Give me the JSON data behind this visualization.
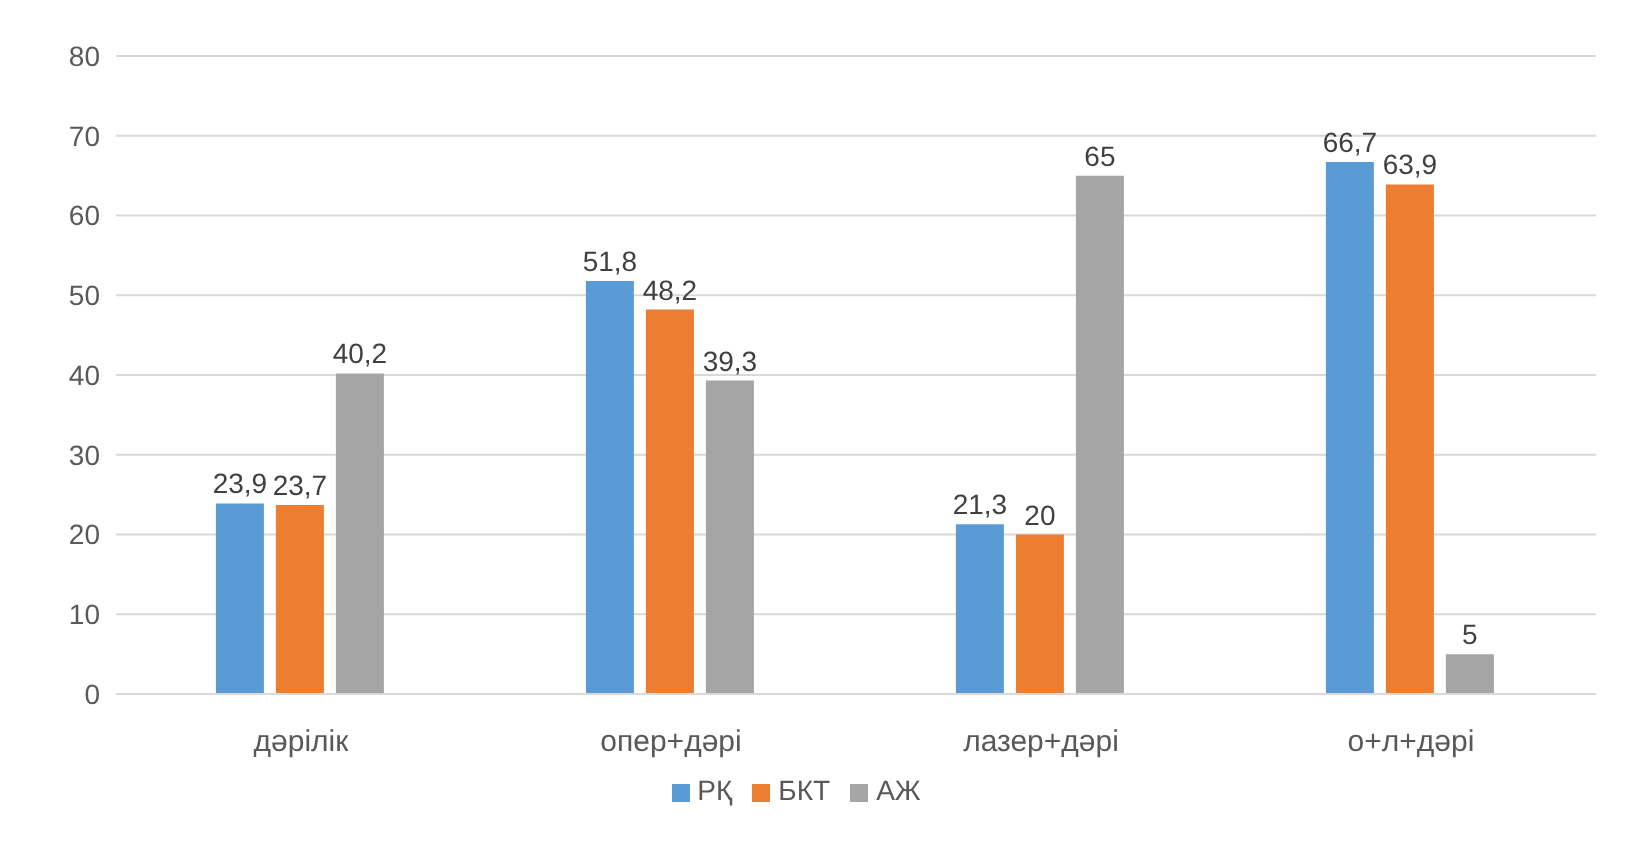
{
  "chart_data": {
    "type": "bar",
    "categories": [
      "дәрілік",
      "опер+дәрі",
      "лазер+дәрі",
      "о+л+дәрі"
    ],
    "series": [
      {
        "name": "РҚ",
        "color": "#5b9bd5",
        "values": [
          23.9,
          51.8,
          21.3,
          66.7
        ],
        "value_labels": [
          "23,9",
          "51,8",
          "21,3",
          "66,7"
        ]
      },
      {
        "name": "БКТ",
        "color": "#ed7d31",
        "values": [
          23.7,
          48.2,
          20,
          63.9
        ],
        "value_labels": [
          "23,7",
          "48,2",
          "20",
          "63,9"
        ]
      },
      {
        "name": "АЖ",
        "color": "#a5a5a5",
        "values": [
          40.2,
          39.3,
          65,
          5
        ],
        "value_labels": [
          "40,2",
          "39,3",
          "65",
          "5"
        ]
      }
    ],
    "ylim": [
      0,
      80
    ],
    "yticks": [
      0,
      10,
      20,
      30,
      40,
      50,
      60,
      70,
      80
    ],
    "grid": "y",
    "legend": "bottom"
  }
}
